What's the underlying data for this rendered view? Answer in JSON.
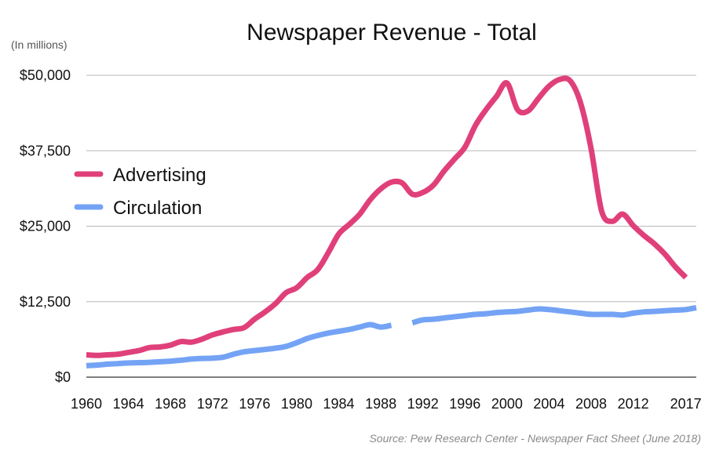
{
  "chart_data": {
    "type": "line",
    "title": "Newspaper Revenue - Total",
    "unit_label": "(In millions)",
    "source": "Source: Pew Research Center - Newspaper Fact Sheet (June 2018)",
    "x_range": [
      1960,
      2018
    ],
    "ylim": [
      0,
      50000
    ],
    "y_ticks": [
      0,
      12500,
      25000,
      37500,
      50000
    ],
    "y_tick_labels": [
      "$0",
      "$12,500",
      "$25,000",
      "$37,500",
      "$50,000"
    ],
    "x_ticks": [
      1960,
      1964,
      1968,
      1972,
      1976,
      1980,
      1984,
      1988,
      1992,
      1996,
      2000,
      2004,
      2008,
      2012,
      2017
    ],
    "x_tick_labels": [
      "1960",
      "1964",
      "1968",
      "1972",
      "1976",
      "1980",
      "1984",
      "1988",
      "1992",
      "1996",
      "2000",
      "2004",
      "2008",
      "2012",
      "2017"
    ],
    "grid": "horizontal",
    "legend_position": "left",
    "series": [
      {
        "name": "Advertising",
        "color": "#e0407a",
        "points": [
          [
            1960,
            3700
          ],
          [
            1961,
            3600
          ],
          [
            1962,
            3700
          ],
          [
            1963,
            3800
          ],
          [
            1964,
            4100
          ],
          [
            1965,
            4400
          ],
          [
            1966,
            4900
          ],
          [
            1967,
            5000
          ],
          [
            1968,
            5300
          ],
          [
            1969,
            5900
          ],
          [
            1970,
            5800
          ],
          [
            1971,
            6300
          ],
          [
            1972,
            7000
          ],
          [
            1973,
            7500
          ],
          [
            1974,
            7900
          ],
          [
            1975,
            8200
          ],
          [
            1976,
            9600
          ],
          [
            1977,
            10800
          ],
          [
            1978,
            12200
          ],
          [
            1979,
            14000
          ],
          [
            1980,
            14800
          ],
          [
            1981,
            16500
          ],
          [
            1982,
            17800
          ],
          [
            1983,
            20600
          ],
          [
            1984,
            23700
          ],
          [
            1985,
            25300
          ],
          [
            1986,
            27000
          ],
          [
            1987,
            29400
          ],
          [
            1988,
            31200
          ],
          [
            1989,
            32300
          ],
          [
            1990,
            32200
          ],
          [
            1991,
            30300
          ],
          [
            1992,
            30600
          ],
          [
            1993,
            31800
          ],
          [
            1994,
            34100
          ],
          [
            1995,
            36100
          ],
          [
            1996,
            38100
          ],
          [
            1997,
            41700
          ],
          [
            1998,
            44300
          ],
          [
            1999,
            46500
          ],
          [
            2000,
            48700
          ],
          [
            2001,
            44300
          ],
          [
            2002,
            44100
          ],
          [
            2003,
            46200
          ],
          [
            2004,
            48200
          ],
          [
            2005,
            49300
          ],
          [
            2006,
            49100
          ],
          [
            2007,
            45400
          ],
          [
            2008,
            37800
          ],
          [
            2009,
            27500
          ],
          [
            2010,
            25800
          ],
          [
            2011,
            27000
          ],
          [
            2012,
            25100
          ],
          [
            2013,
            23500
          ],
          [
            2014,
            22100
          ],
          [
            2015,
            20400
          ],
          [
            2016,
            18300
          ],
          [
            2017,
            16500
          ]
        ]
      },
      {
        "name": "Circulation",
        "color": "#74a3f5",
        "points": [
          [
            1960,
            1900
          ],
          [
            1961,
            2000
          ],
          [
            1962,
            2150
          ],
          [
            1963,
            2250
          ],
          [
            1964,
            2350
          ],
          [
            1965,
            2400
          ],
          [
            1966,
            2450
          ],
          [
            1967,
            2550
          ],
          [
            1968,
            2650
          ],
          [
            1969,
            2800
          ],
          [
            1970,
            3000
          ],
          [
            1971,
            3100
          ],
          [
            1972,
            3150
          ],
          [
            1973,
            3300
          ],
          [
            1974,
            3800
          ],
          [
            1975,
            4200
          ],
          [
            1976,
            4400
          ],
          [
            1977,
            4600
          ],
          [
            1978,
            4800
          ],
          [
            1979,
            5100
          ],
          [
            1980,
            5700
          ],
          [
            1981,
            6400
          ],
          [
            1982,
            6900
          ],
          [
            1983,
            7300
          ],
          [
            1984,
            7600
          ],
          [
            1985,
            7900
          ],
          [
            1986,
            8300
          ],
          [
            1987,
            8700
          ],
          [
            1988,
            8300
          ],
          [
            1989,
            8600
          ],
          [
            1990,
            null
          ],
          [
            1991,
            9000
          ],
          [
            1992,
            9500
          ],
          [
            1993,
            9600
          ],
          [
            1994,
            9800
          ],
          [
            1995,
            10000
          ],
          [
            1996,
            10200
          ],
          [
            1997,
            10400
          ],
          [
            1998,
            10500
          ],
          [
            1999,
            10700
          ],
          [
            2000,
            10800
          ],
          [
            2001,
            10900
          ],
          [
            2002,
            11100
          ],
          [
            2003,
            11300
          ],
          [
            2004,
            11200
          ],
          [
            2005,
            11000
          ],
          [
            2006,
            10800
          ],
          [
            2007,
            10600
          ],
          [
            2008,
            10400
          ],
          [
            2009,
            10400
          ],
          [
            2010,
            10400
          ],
          [
            2011,
            10300
          ],
          [
            2012,
            10600
          ],
          [
            2013,
            10800
          ],
          [
            2014,
            10900
          ],
          [
            2015,
            11000
          ],
          [
            2016,
            11100
          ],
          [
            2017,
            11200
          ],
          [
            2018,
            11500
          ]
        ]
      }
    ]
  }
}
